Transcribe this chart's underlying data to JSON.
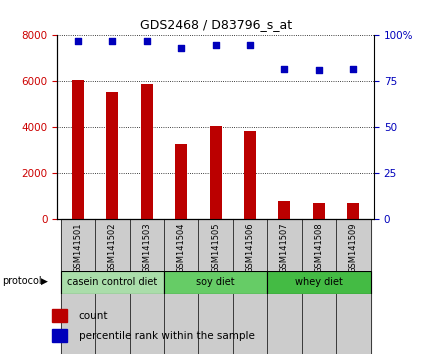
{
  "title": "GDS2468 / D83796_s_at",
  "samples": [
    "GSM141501",
    "GSM141502",
    "GSM141503",
    "GSM141504",
    "GSM141505",
    "GSM141506",
    "GSM141507",
    "GSM141508",
    "GSM141509"
  ],
  "bar_values": [
    6050,
    5550,
    5900,
    3300,
    4050,
    3850,
    800,
    700,
    700
  ],
  "percentile_values": [
    97,
    97,
    97,
    93,
    95,
    95,
    82,
    81,
    82
  ],
  "ylim_left": [
    0,
    8000
  ],
  "ylim_right": [
    0,
    100
  ],
  "yticks_left": [
    0,
    2000,
    4000,
    6000,
    8000
  ],
  "yticks_right": [
    0,
    25,
    50,
    75,
    100
  ],
  "bar_color": "#bb0000",
  "scatter_color": "#0000bb",
  "groups": [
    {
      "label": "casein control diet",
      "start": 0,
      "end": 3,
      "color": "#aaddaa"
    },
    {
      "label": "soy diet",
      "start": 3,
      "end": 6,
      "color": "#66cc66"
    },
    {
      "label": "whey diet",
      "start": 6,
      "end": 9,
      "color": "#44bb44"
    }
  ],
  "protocol_label": "protocol",
  "legend_count_label": "count",
  "legend_percentile_label": "percentile rank within the sample",
  "tick_label_color_left": "#cc0000",
  "tick_label_color_right": "#0000cc",
  "tick_label_fontsize": 7.5,
  "bar_width": 0.35,
  "bg_color": "#ffffff"
}
